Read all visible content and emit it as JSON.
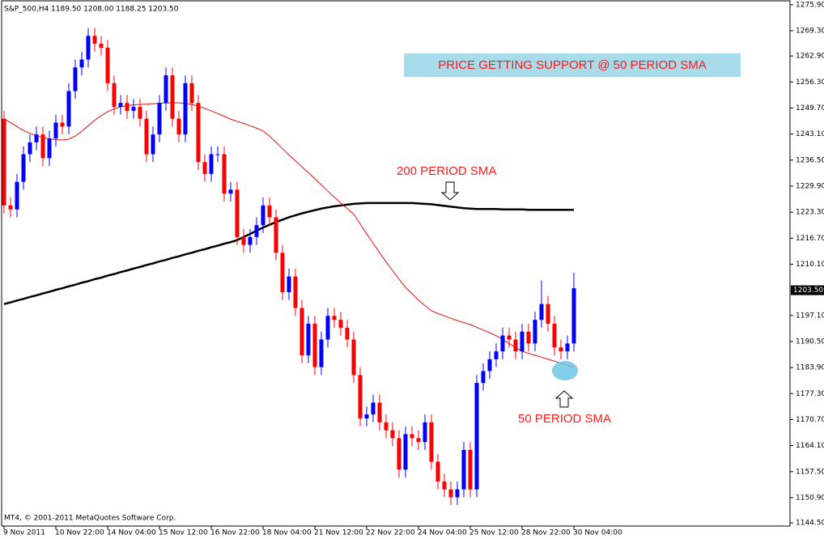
{
  "chart_data": {
    "type": "candlestick",
    "annotations": [
      "S&P_500,H4  1189.50 1208.00 1188.25 1203.50",
      "MT4, © 2001-2011 MetaQuotes Software Corp.",
      "PRICE GETTING SUPPORT @ 50 PERIOD SMA",
      "200 PERIOD SMA",
      "50 PERIOD SMA"
    ],
    "categories": [
      "9 Nov 2011",
      null,
      null,
      null,
      null,
      null,
      null,
      null,
      "10 Nov 22:00",
      null,
      null,
      null,
      null,
      null,
      null,
      null,
      "14 Nov 04:00",
      null,
      null,
      null,
      null,
      null,
      null,
      null,
      "15 Nov 12:00",
      null,
      null,
      null,
      null,
      null,
      null,
      null,
      "16 Nov 22:00",
      null,
      null,
      null,
      null,
      null,
      null,
      null,
      "18 Nov 04:00",
      null,
      null,
      null,
      null,
      null,
      null,
      null,
      "21 Nov 12:00",
      null,
      null,
      null,
      null,
      null,
      null,
      null,
      "22 Nov 22:00",
      null,
      null,
      null,
      null,
      null,
      null,
      null,
      "24 Nov 04:00",
      null,
      null,
      null,
      null,
      null,
      null,
      null,
      "25 Nov 12:00",
      null,
      null,
      null,
      null,
      null,
      null,
      null,
      "28 Nov 22:00",
      null,
      null,
      null,
      null,
      null,
      null,
      null,
      "30 Nov 04:00"
    ],
    "open": [
      1247,
      1225,
      1224,
      1231,
      1238,
      1241,
      1243,
      1237,
      1242,
      1246,
      1245,
      1254,
      1260,
      1262,
      1268,
      1266,
      1265,
      1256,
      1250,
      1251,
      1249,
      1250,
      1247,
      1238,
      1243,
      1251,
      1258,
      1247,
      1243,
      1256,
      1251,
      1236,
      1233,
      1238,
      1238,
      1228,
      1229,
      1217,
      1215,
      1217,
      1220,
      1225,
      1222,
      1213,
      1203,
      1207,
      1199,
      1187,
      1195,
      1184,
      1191,
      1197,
      1196,
      1194,
      1191,
      1182,
      1171,
      1172,
      1175,
      1170,
      1168,
      1166,
      1158,
      1167,
      1166,
      1165,
      1170,
      1160,
      1155,
      1153,
      1151,
      1153,
      1163,
      1153,
      1180,
      1183,
      1186,
      1188,
      1192,
      1191,
      1188,
      1193,
      1190,
      1196,
      1200,
      1195,
      1189,
      1188,
      1190
    ],
    "high": [
      1249,
      1227,
      1233,
      1240,
      1243,
      1245,
      1245,
      1244,
      1248,
      1248,
      1256,
      1262,
      1264,
      1270,
      1270,
      1268,
      1267,
      1258,
      1253,
      1253,
      1252,
      1252,
      1249,
      1245,
      1253,
      1260,
      1260,
      1249,
      1258,
      1258,
      1253,
      1238,
      1240,
      1240,
      1240,
      1231,
      1231,
      1219,
      1219,
      1222,
      1227,
      1227,
      1224,
      1215,
      1209,
      1209,
      1201,
      1197,
      1197,
      1193,
      1199,
      1199,
      1198,
      1196,
      1193,
      1184,
      1174,
      1177,
      1177,
      1172,
      1170,
      1168,
      1169,
      1169,
      1168,
      1172,
      1172,
      1162,
      1157,
      1155,
      1155,
      1165,
      1165,
      1182,
      1185,
      1188,
      1190,
      1194,
      1194,
      1193,
      1195,
      1195,
      1198,
      1206,
      1202,
      1197,
      1191,
      1192,
      1208
    ],
    "low": [
      1223,
      1222,
      1222,
      1229,
      1236,
      1239,
      1235,
      1235,
      1240,
      1243,
      1243,
      1252,
      1258,
      1260,
      1264,
      1263,
      1254,
      1248,
      1248,
      1247,
      1247,
      1245,
      1236,
      1236,
      1241,
      1249,
      1245,
      1241,
      1241,
      1249,
      1234,
      1231,
      1231,
      1236,
      1226,
      1226,
      1215,
      1213,
      1213,
      1215,
      1218,
      1220,
      1211,
      1201,
      1201,
      1197,
      1185,
      1185,
      1182,
      1182,
      1189,
      1194,
      1192,
      1189,
      1180,
      1169,
      1169,
      1170,
      1168,
      1166,
      1164,
      1156,
      1156,
      1164,
      1163,
      1163,
      1158,
      1153,
      1151,
      1149,
      1149,
      1151,
      1151,
      1151,
      1178,
      1181,
      1184,
      1186,
      1189,
      1186,
      1186,
      1188,
      1188,
      1194,
      1193,
      1187,
      1186,
      1186,
      1188
    ],
    "close": [
      1225,
      1224,
      1231,
      1238,
      1241,
      1243,
      1237,
      1242,
      1246,
      1245,
      1254,
      1260,
      1262,
      1268,
      1266,
      1265,
      1256,
      1250,
      1251,
      1249,
      1250,
      1247,
      1238,
      1243,
      1251,
      1258,
      1247,
      1243,
      1256,
      1251,
      1236,
      1233,
      1238,
      1238,
      1228,
      1229,
      1217,
      1215,
      1217,
      1220,
      1225,
      1222,
      1213,
      1203,
      1207,
      1199,
      1187,
      1195,
      1184,
      1191,
      1197,
      1196,
      1194,
      1191,
      1182,
      1171,
      1172,
      1175,
      1170,
      1168,
      1166,
      1158,
      1167,
      1166,
      1165,
      1170,
      1160,
      1155,
      1153,
      1151,
      1153,
      1163,
      1153,
      1180,
      1183,
      1186,
      1188,
      1192,
      1191,
      1188,
      1193,
      1190,
      1196,
      1200,
      1195,
      1189,
      1188,
      1190,
      1204
    ],
    "up_color": "#0000ff",
    "down_color": "#ff0000",
    "sma_lines": [
      {
        "color": "#000000",
        "values": [
          1200.0,
          1200.4,
          1200.9,
          1201.3,
          1201.8,
          1202.2,
          1202.7,
          1203.1,
          1203.6,
          1204.0,
          1204.5,
          1204.9,
          1205.4,
          1205.8,
          1206.3,
          1206.7,
          1207.2,
          1207.6,
          1208.1,
          1208.5,
          1209.0,
          1209.4,
          1209.9,
          1210.3,
          1210.8,
          1211.2,
          1211.7,
          1212.1,
          1212.6,
          1213.0,
          1213.5,
          1213.9,
          1214.4,
          1214.8,
          1215.3,
          1215.7,
          1216.2,
          1217.0,
          1217.8,
          1218.6,
          1219.4,
          1220.1,
          1220.8,
          1221.4,
          1222.0,
          1222.5,
          1223.0,
          1223.4,
          1223.8,
          1224.2,
          1224.5,
          1224.8,
          1225.0,
          1225.2,
          1225.4,
          1225.5,
          1225.6,
          1225.6,
          1225.6,
          1225.6,
          1225.6,
          1225.6,
          1225.6,
          1225.6,
          1225.5,
          1225.4,
          1225.3,
          1225.1,
          1224.9,
          1224.7,
          1224.5,
          1224.3,
          1224.2,
          1224.1,
          1224.1,
          1224.1,
          1224.1,
          1224.0,
          1224.0,
          1224.0,
          1224.0,
          1223.9,
          1223.9,
          1223.9,
          1223.9,
          1223.9,
          1223.9,
          1223.9,
          1223.9
        ]
      },
      {
        "color": "#e01010",
        "values": [
          1247,
          1246,
          1245,
          1244,
          1243.3,
          1242.7,
          1242.2,
          1241.9,
          1241.7,
          1241.6,
          1241.8,
          1242.6,
          1243.8,
          1245.2,
          1246.6,
          1247.8,
          1248.8,
          1249.5,
          1250.0,
          1250.3,
          1250.5,
          1250.6,
          1250.7,
          1250.8,
          1250.9,
          1251.0,
          1251.0,
          1251.0,
          1250.9,
          1250.6,
          1250.2,
          1249.6,
          1249.0,
          1248.3,
          1247.6,
          1246.9,
          1246.3,
          1245.8,
          1245.2,
          1244.6,
          1243.9,
          1242.6,
          1241.0,
          1239.4,
          1237.8,
          1236.3,
          1234.8,
          1233.3,
          1231.8,
          1230.2,
          1228.6,
          1227.1,
          1225.6,
          1224.2,
          1222.8,
          1220.3,
          1217.8,
          1215.4,
          1213.0,
          1210.7,
          1208.5,
          1206.3,
          1204.2,
          1202.6,
          1201.0,
          1199.6,
          1198.3,
          1197.6,
          1197.0,
          1196.4,
          1195.8,
          1195.3,
          1194.8,
          1194.1,
          1193.4,
          1192.7,
          1192.0,
          1191.0,
          1190.0,
          1189.0,
          1188.0,
          1187.5,
          1187.0,
          1186.5,
          1186.0,
          1185.5,
          1185.0,
          1184.5,
          1184.0
        ]
      }
    ],
    "ylim": [
      1143.7,
      1277.1
    ],
    "yticks": [
      {
        "value": 1275.9,
        "label": "1275.90"
      },
      {
        "value": 1269.3,
        "label": "1269.30"
      },
      {
        "value": 1262.9,
        "label": "1262.90"
      },
      {
        "value": 1256.3,
        "label": "1256.30"
      },
      {
        "value": 1249.7,
        "label": "1249.70"
      },
      {
        "value": 1243.1,
        "label": "1243.10"
      },
      {
        "value": 1236.5,
        "label": "1236.50"
      },
      {
        "value": 1229.9,
        "label": "1229.90"
      },
      {
        "value": 1223.3,
        "label": "1223.30"
      },
      {
        "value": 1216.7,
        "label": "1216.70"
      },
      {
        "value": 1210.1,
        "label": "1210.10"
      },
      {
        "value": 1197.1,
        "label": "1197.10"
      },
      {
        "value": 1190.5,
        "label": "1190.50"
      },
      {
        "value": 1183.9,
        "label": "1183.90"
      },
      {
        "value": 1177.3,
        "label": "1177.30"
      },
      {
        "value": 1170.7,
        "label": "1170.70"
      },
      {
        "value": 1164.1,
        "label": "1164.10"
      },
      {
        "value": 1157.5,
        "label": "1157.50"
      },
      {
        "value": 1150.9,
        "label": "1150.90"
      },
      {
        "value": 1144.5,
        "label": "1144.50"
      }
    ],
    "current_price": {
      "value": 1203.5,
      "label": "1203.50"
    }
  }
}
